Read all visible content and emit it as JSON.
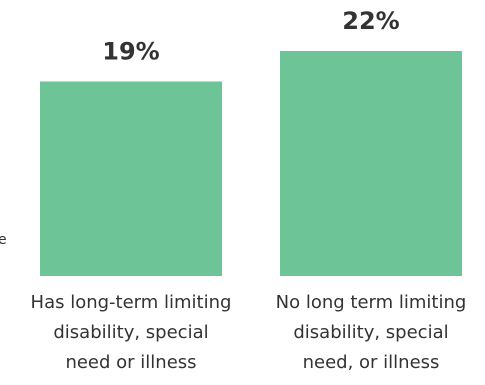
{
  "colors": {
    "bar": "#6cc497",
    "text": "#333333",
    "background": "#ffffff"
  },
  "chart_data": {
    "type": "bar",
    "title": "",
    "xlabel": "",
    "ylabel": "",
    "categories": [
      [
        "Has long-term limiting",
        "disability, special",
        "need or illness"
      ],
      [
        "No long term limiting",
        "disability, special",
        "need, or illness"
      ]
    ],
    "values": [
      19,
      22
    ],
    "data_labels": [
      "19%",
      "22%"
    ],
    "ylim": [
      0,
      25
    ],
    "grid": false,
    "legend": "none"
  },
  "edge_fragment": "e"
}
